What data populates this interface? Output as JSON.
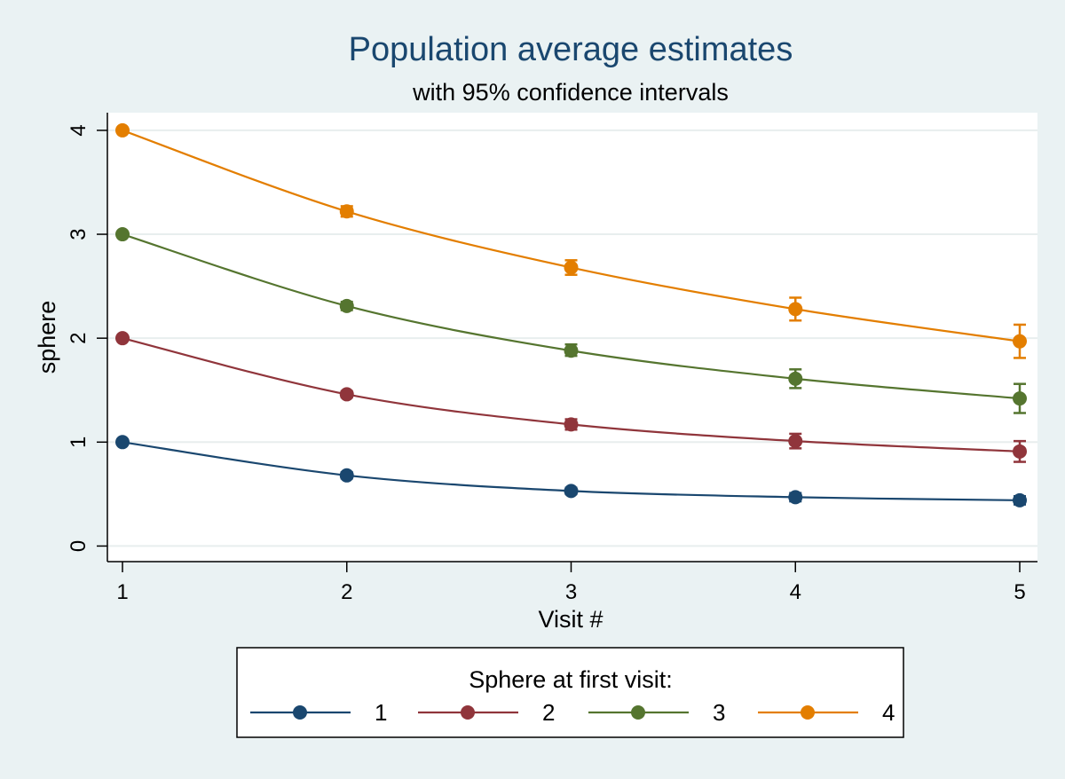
{
  "chart_data": {
    "type": "line",
    "title": "Population average estimates",
    "subtitle": "with 95% confidence intervals",
    "xlabel": "Visit #",
    "ylabel": "sphere",
    "x": [
      1,
      2,
      3,
      4,
      5
    ],
    "xticks": [
      "1",
      "2",
      "3",
      "4",
      "5"
    ],
    "yticks": [
      "0",
      "1",
      "2",
      "3",
      "4"
    ],
    "xlim": [
      1,
      5
    ],
    "ylim": [
      -0.15,
      4.17
    ],
    "grid": true,
    "legend": {
      "title": "Sphere at first visit:",
      "position": "bottom"
    },
    "series": [
      {
        "name": "1",
        "color": "#1a476f",
        "values": [
          1.0,
          0.68,
          0.53,
          0.47,
          0.44
        ],
        "ci_lower": [
          1.0,
          0.65,
          0.5,
          0.43,
          0.4
        ],
        "ci_upper": [
          1.0,
          0.71,
          0.56,
          0.51,
          0.48
        ]
      },
      {
        "name": "2",
        "color": "#90353b",
        "values": [
          2.0,
          1.46,
          1.17,
          1.01,
          0.91
        ],
        "ci_lower": [
          2.0,
          1.43,
          1.12,
          0.94,
          0.81
        ],
        "ci_upper": [
          2.0,
          1.49,
          1.22,
          1.08,
          1.01
        ]
      },
      {
        "name": "3",
        "color": "#55752f",
        "values": [
          3.0,
          2.31,
          1.88,
          1.61,
          1.42
        ],
        "ci_lower": [
          3.0,
          2.27,
          1.83,
          1.52,
          1.28
        ],
        "ci_upper": [
          3.0,
          2.35,
          1.94,
          1.7,
          1.56
        ]
      },
      {
        "name": "4",
        "color": "#e37e00",
        "values": [
          4.0,
          3.22,
          2.68,
          2.28,
          1.97
        ],
        "ci_lower": [
          4.0,
          3.17,
          2.61,
          2.17,
          1.81
        ],
        "ci_upper": [
          4.0,
          3.27,
          2.75,
          2.39,
          2.13
        ]
      }
    ]
  }
}
